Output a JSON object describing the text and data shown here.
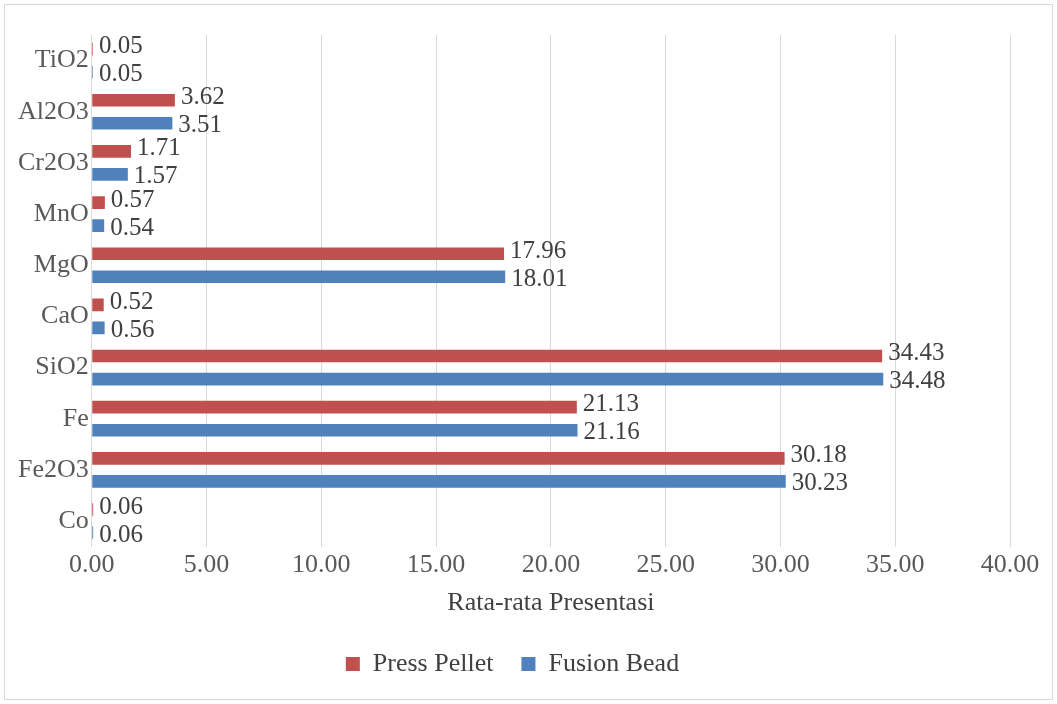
{
  "chart_data": {
    "type": "bar",
    "orientation": "horizontal",
    "xlabel": "Rata-rata Presentasi",
    "categories": [
      "TiO2",
      "Al2O3",
      "Cr2O3",
      "MnO",
      "MgO",
      "CaO",
      "SiO2",
      "Fe",
      "Fe2O3",
      "Co"
    ],
    "series": [
      {
        "name": "Press Pellet",
        "color": "#c0504d",
        "values": [
          0.05,
          3.62,
          1.71,
          0.57,
          17.96,
          0.52,
          34.43,
          21.13,
          30.18,
          0.06
        ]
      },
      {
        "name": "Fusion Bead",
        "color": "#4f81bd",
        "values": [
          0.05,
          3.51,
          1.57,
          0.54,
          18.01,
          0.56,
          34.48,
          21.16,
          30.23,
          0.06
        ]
      }
    ],
    "xlim": [
      0,
      40
    ],
    "xticks": [
      {
        "value": 0,
        "label": "0.00"
      },
      {
        "value": 5,
        "label": "5.00"
      },
      {
        "value": 10,
        "label": "10.00"
      },
      {
        "value": 15,
        "label": "15.00"
      },
      {
        "value": 20,
        "label": "20.00"
      },
      {
        "value": 25,
        "label": "25.00"
      },
      {
        "value": 30,
        "label": "30.00"
      },
      {
        "value": 35,
        "label": "35.00"
      },
      {
        "value": 40,
        "label": "40.00"
      }
    ],
    "grid": "x",
    "legend": "bottom",
    "data_labels": true
  }
}
